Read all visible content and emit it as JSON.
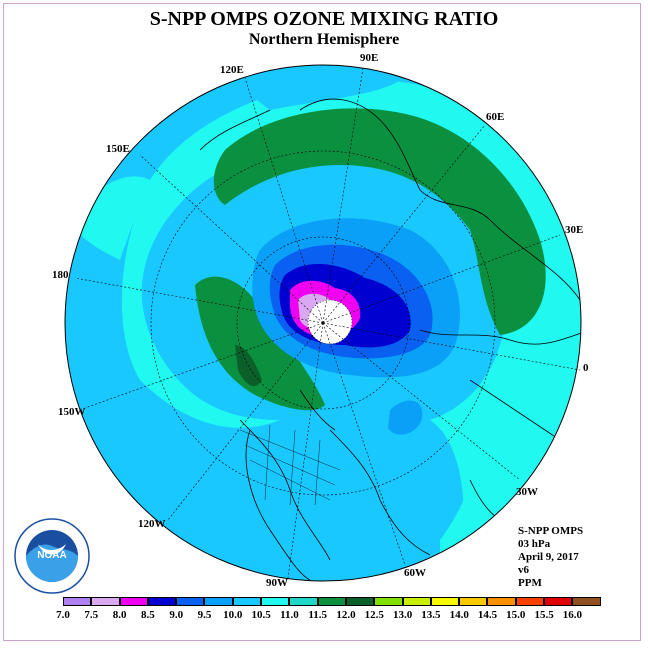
{
  "title": "S-NPP OMPS OZONE MIXING RATIO",
  "subtitle": "Northern Hemisphere",
  "longitude_labels": [
    "90E",
    "60E",
    "30E",
    "0",
    "30W",
    "60W",
    "90W",
    "120W",
    "150W",
    "180",
    "150E",
    "120E"
  ],
  "info": {
    "instrument": "S-NPP OMPS",
    "level": "03 hPa",
    "date": "April 9, 2017",
    "version": "v6",
    "units": "PPM"
  },
  "colorbar": {
    "ticks": [
      "7.0",
      "7.5",
      "8.0",
      "8.5",
      "9.0",
      "9.5",
      "10.0",
      "10.5",
      "11.0",
      "11.5",
      "12.0",
      "12.5",
      "13.0",
      "13.5",
      "14.0",
      "14.5",
      "15.0",
      "15.5",
      "16.0"
    ],
    "colors": [
      "#b080f0",
      "#d8a8f0",
      "#f000f0",
      "#0000d0",
      "#0a60f0",
      "#0aa0f8",
      "#18c8ff",
      "#20f8f0",
      "#20d8c8",
      "#0b9040",
      "#0a6028",
      "#80e000",
      "#c8f000",
      "#f8f800",
      "#f8c800",
      "#f89000",
      "#f84000",
      "#e00000",
      "#905020"
    ]
  },
  "logo": {
    "text": "NOAA",
    "ring_text": "NATIONAL OCEANIC AND ATMOSPHERIC ADMINISTRATION · U.S. DEPARTMENT OF COMMERCE"
  }
}
